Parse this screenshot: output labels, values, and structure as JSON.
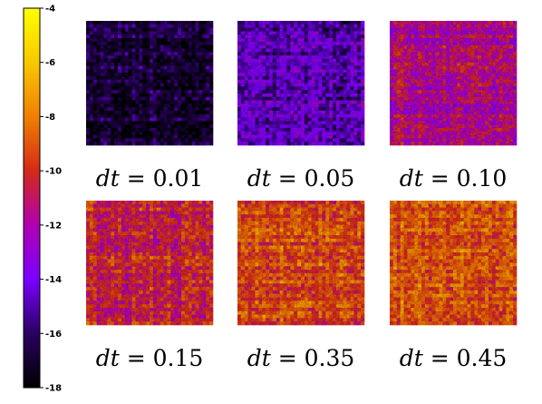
{
  "chart_data": {
    "type": "heatmap",
    "panels": [
      {
        "label": "dt = 0.01",
        "dt": 0.01,
        "mean_value": -16.8
      },
      {
        "label": "dt = 0.05",
        "dt": 0.05,
        "mean_value": -14.6
      },
      {
        "label": "dt = 0.10",
        "dt": 0.1,
        "mean_value": -11.6
      },
      {
        "label": "dt = 0.15",
        "dt": 0.15,
        "mean_value": -10.2
      },
      {
        "label": "dt = 0.35",
        "dt": 0.35,
        "mean_value": -8.9
      },
      {
        "label": "dt = 0.45",
        "dt": 0.45,
        "mean_value": -8.7
      }
    ],
    "colorbar": {
      "range": [
        -18,
        -4
      ],
      "ticks": [
        -4,
        -6,
        -8,
        -10,
        -12,
        -14,
        -16,
        -18
      ],
      "colormap": [
        "#000000",
        "#2a0060",
        "#7a00ff",
        "#b000b0",
        "#d42a18",
        "#f08000",
        "#f8c800",
        "#ffff00"
      ]
    }
  }
}
